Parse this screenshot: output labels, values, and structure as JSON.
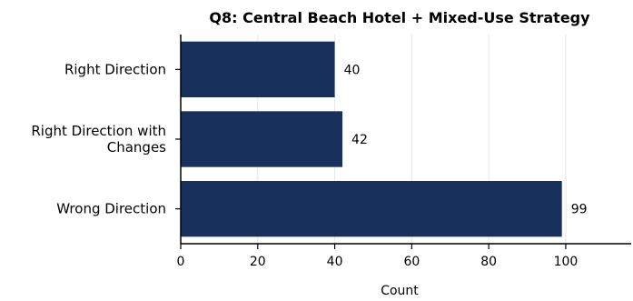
{
  "chart_data": {
    "type": "bar",
    "orientation": "horizontal",
    "title": "Q8: Central Beach Hotel + Mixed-Use Strategy",
    "categories": [
      [
        "Right Direction"
      ],
      [
        "Right Direction with",
        "Changes"
      ],
      [
        "Wrong Direction"
      ]
    ],
    "values": [
      40,
      42,
      99
    ],
    "value_labels": [
      "40",
      "42",
      "99"
    ],
    "xlabel": "Count",
    "ylabel": "",
    "xlim": [
      0,
      117
    ],
    "xticks": [
      0,
      20,
      40,
      60,
      80,
      100
    ],
    "grid": true,
    "bar_color": "#17315c"
  }
}
